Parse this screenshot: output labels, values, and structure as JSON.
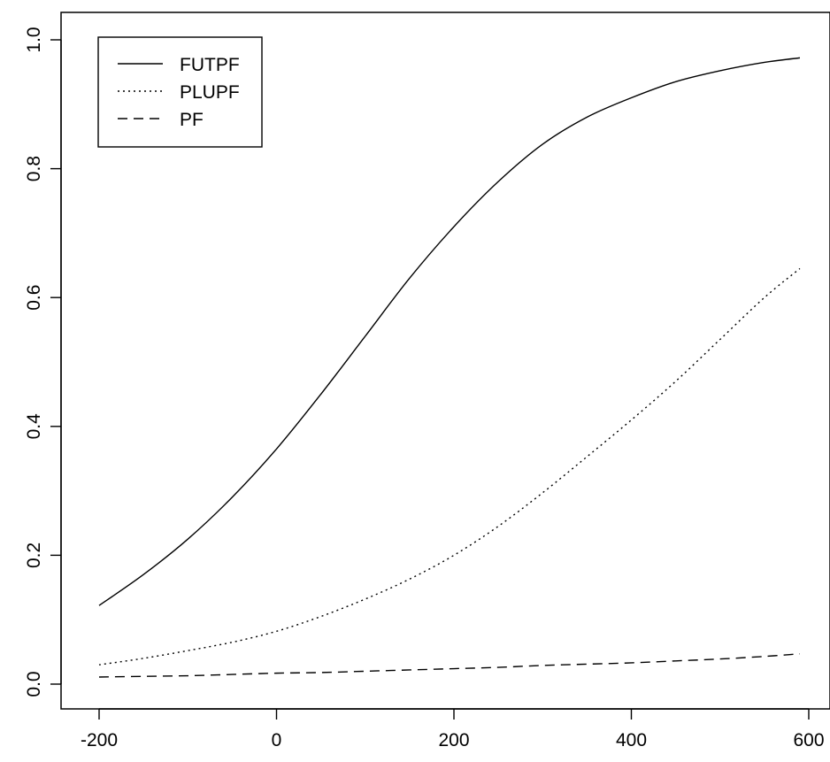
{
  "chart_data": {
    "type": "line",
    "title": "",
    "xlabel": "",
    "ylabel": "",
    "xlim": [
      -200,
      620
    ],
    "ylim": [
      -0.04,
      1.04
    ],
    "x_ticks": [
      -200,
      0,
      200,
      400,
      600
    ],
    "x_tick_labels": [
      "-200",
      "0",
      "200",
      "400",
      "600"
    ],
    "y_ticks": [
      0.0,
      0.2,
      0.4,
      0.6,
      0.8,
      1.0
    ],
    "y_tick_labels": [
      "0.0",
      "0.2",
      "0.4",
      "0.6",
      "0.8",
      "1.0"
    ],
    "grid": false,
    "legend_position": "top-left",
    "x": [
      -200,
      -150,
      -100,
      -50,
      0,
      50,
      100,
      150,
      200,
      250,
      300,
      350,
      400,
      450,
      500,
      550,
      590
    ],
    "series": [
      {
        "name": "FUTPF",
        "line_style": "solid",
        "color": "#000000",
        "values": [
          0.122,
          0.17,
          0.225,
          0.29,
          0.365,
          0.45,
          0.54,
          0.63,
          0.71,
          0.78,
          0.838,
          0.88,
          0.91,
          0.935,
          0.952,
          0.965,
          0.972
        ]
      },
      {
        "name": "PLUPF",
        "line_style": "dotted",
        "color": "#000000",
        "values": [
          0.03,
          0.04,
          0.052,
          0.065,
          0.082,
          0.105,
          0.132,
          0.163,
          0.2,
          0.245,
          0.297,
          0.353,
          0.41,
          0.47,
          0.535,
          0.6,
          0.645
        ]
      },
      {
        "name": "PF",
        "line_style": "dashed",
        "color": "#000000",
        "values": [
          0.011,
          0.012,
          0.013,
          0.015,
          0.017,
          0.018,
          0.02,
          0.022,
          0.024,
          0.026,
          0.029,
          0.031,
          0.033,
          0.036,
          0.039,
          0.043,
          0.047
        ]
      }
    ]
  }
}
